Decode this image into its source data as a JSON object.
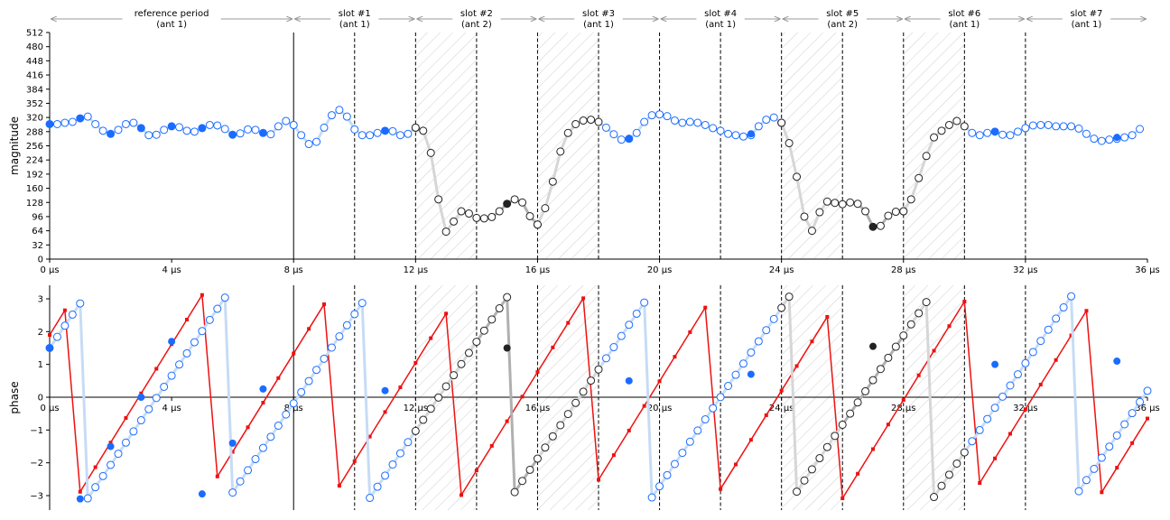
{
  "chart_data": [
    {
      "type": "scatter",
      "ylabel": "magnitude",
      "xlim": [
        0,
        36
      ],
      "ylim": [
        0,
        512
      ],
      "x_tick_values": [
        0,
        4,
        8,
        12,
        16,
        20,
        24,
        28,
        32,
        36
      ],
      "x_tick_labels": [
        "0 µs",
        "4 µs",
        "8 µs",
        "12 µs",
        "16 µs",
        "20 µs",
        "24 µs",
        "28 µs",
        "32 µs",
        "36 µs"
      ],
      "y_tick_values": [
        0,
        32,
        64,
        96,
        128,
        160,
        192,
        224,
        256,
        288,
        320,
        352,
        384,
        416,
        448,
        480,
        512
      ],
      "y_tick_labels": [
        "0",
        "32",
        "64",
        "96",
        "128",
        "160",
        "192",
        "224",
        "256",
        "288",
        "320",
        "352",
        "384",
        "416",
        "448",
        "480",
        "512"
      ],
      "grid": false,
      "sample_step_us": 0.25,
      "series": [
        {
          "x_start": 0,
          "values": [
            305,
            305,
            308,
            310,
            318,
            322,
            305,
            290,
            283,
            292,
            305,
            308,
            296,
            280,
            281,
            292,
            300,
            298,
            290,
            288,
            296,
            303,
            302,
            294,
            281,
            284,
            293,
            292,
            285,
            282,
            300,
            312,
            303
          ]
        },
        {
          "x_start": 8,
          "values": [
            303,
            280,
            260,
            265,
            297,
            325,
            337,
            322,
            293,
            280,
            280,
            285,
            290,
            289,
            280,
            283,
            297
          ]
        },
        {
          "x_start": 12,
          "values": [
            297,
            290,
            240,
            135,
            62,
            85,
            108,
            103,
            93,
            92,
            95,
            108,
            125,
            135,
            128,
            97,
            78
          ]
        },
        {
          "x_start": 16,
          "values": [
            78,
            115,
            175,
            243,
            285,
            305,
            313,
            315,
            310,
            297,
            282,
            270,
            272,
            285,
            310,
            325,
            327,
            323,
            313,
            308,
            310,
            308,
            303,
            296,
            290,
            283,
            280,
            277,
            280,
            300,
            315,
            320,
            308
          ]
        },
        {
          "x_start": 24,
          "values": [
            308,
            262,
            186,
            96,
            64,
            106,
            130,
            127,
            124,
            128,
            125,
            108,
            73,
            75,
            98,
            107,
            108
          ]
        },
        {
          "x_start": 28,
          "values": [
            108,
            135,
            183,
            233,
            275,
            290,
            303,
            312,
            300,
            285,
            280,
            285,
            288,
            281,
            280,
            288,
            296
          ]
        },
        {
          "x_start": 32,
          "values": [
            296,
            302,
            303,
            303,
            300,
            300,
            300,
            295,
            283,
            272,
            267,
            270,
            272,
            275,
            280,
            294
          ]
        }
      ],
      "filled_points": [
        {
          "x": 0,
          "y": 305
        },
        {
          "x": 1,
          "y": 318
        },
        {
          "x": 2,
          "y": 283
        },
        {
          "x": 3,
          "y": 296
        },
        {
          "x": 4,
          "y": 300
        },
        {
          "x": 5,
          "y": 296
        },
        {
          "x": 6,
          "y": 281
        },
        {
          "x": 7,
          "y": 285
        },
        {
          "x": 11,
          "y": 290
        },
        {
          "x": 15,
          "y": 125
        },
        {
          "x": 19,
          "y": 272
        },
        {
          "x": 23,
          "y": 283
        },
        {
          "x": 27,
          "y": 73
        },
        {
          "x": 31,
          "y": 288
        },
        {
          "x": 35,
          "y": 275
        }
      ]
    },
    {
      "type": "line",
      "ylabel": "phase",
      "xlim": [
        0,
        36
      ],
      "ylim": [
        -3.4,
        3.4
      ],
      "x_tick_values": [
        0,
        4,
        8,
        12,
        16,
        20,
        24,
        28,
        32,
        36
      ],
      "x_tick_labels": [
        "0 µs",
        "4 µs",
        "8 µs",
        "12 µs",
        "16 µs",
        "20 µs",
        "24 µs",
        "28 µs",
        "32 µs",
        "36 µs"
      ],
      "y_tick_values": [
        -3,
        -2,
        -1,
        0,
        1,
        2,
        3
      ],
      "y_tick_labels": [
        "−3",
        "−2",
        "−1",
        "0",
        "1",
        "2",
        "3"
      ],
      "grid": false,
      "sample_step_us": 0.25,
      "measured_phase": {
        "x_start": 0,
        "start_value": 1.5,
        "slope_per_us": 1.36,
        "wraps_at": [
          3.1416,
          -3.1416
        ]
      },
      "reference_phase": {
        "x_start": 0,
        "start_value": 1.9,
        "slope_per_us": 1.5,
        "wraps_at": [
          3.1416,
          -3.1416
        ],
        "x_end": 36
      },
      "filled_points": [
        {
          "x": 0,
          "y": 1.5
        },
        {
          "x": 1,
          "y": -3.1
        },
        {
          "x": 2,
          "y": -1.5
        },
        {
          "x": 3,
          "y": 0.0
        },
        {
          "x": 4,
          "y": 1.7
        },
        {
          "x": 5,
          "y": -2.95
        },
        {
          "x": 6,
          "y": -1.4
        },
        {
          "x": 7,
          "y": 0.25
        },
        {
          "x": 11,
          "y": 0.2
        },
        {
          "x": 15,
          "y": 1.5
        },
        {
          "x": 19,
          "y": 0.5
        },
        {
          "x": 23,
          "y": 0.7
        },
        {
          "x": 27,
          "y": 1.55
        },
        {
          "x": 31,
          "y": 1.0
        },
        {
          "x": 35,
          "y": 1.1
        }
      ]
    }
  ],
  "segments": [
    {
      "label": "reference period",
      "sublabel": "(ant 1)",
      "start": 0,
      "end": 8,
      "ant": 1
    },
    {
      "label": "slot #1",
      "sublabel": "(ant 1)",
      "start": 8,
      "end": 12,
      "ant": 1
    },
    {
      "label": "slot #2",
      "sublabel": "(ant 2)",
      "start": 12,
      "end": 16,
      "ant": 2
    },
    {
      "label": "slot #3",
      "sublabel": "(ant 1)",
      "start": 16,
      "end": 20,
      "ant": 1
    },
    {
      "label": "slot #4",
      "sublabel": "(ant 1)",
      "start": 20,
      "end": 24,
      "ant": 1
    },
    {
      "label": "slot #5",
      "sublabel": "(ant 2)",
      "start": 24,
      "end": 28,
      "ant": 2
    },
    {
      "label": "slot #6",
      "sublabel": "(ant 1)",
      "start": 28,
      "end": 32,
      "ant": 1
    },
    {
      "label": "slot #7",
      "sublabel": "(ant 1)",
      "start": 32,
      "end": 36,
      "ant": 1
    }
  ],
  "hatched_regions": [
    [
      12,
      14
    ],
    [
      16,
      18
    ],
    [
      24,
      26
    ],
    [
      28,
      30
    ]
  ],
  "solid_vline_at": [
    8
  ],
  "dashed_vlines_at": [
    10,
    12,
    14,
    16,
    18,
    20,
    22,
    24,
    26,
    28,
    30,
    32
  ],
  "colors": {
    "ant1_marker": "#1a6cff",
    "ant1_line": "#c6dcf5",
    "ant2_marker": "#222222",
    "ant2_line": "#b0b0b0",
    "transition_line": "#d6d6d6",
    "reference_line": "#ee1111",
    "hatch": "#cfcfcf",
    "arrow": "#999999"
  }
}
